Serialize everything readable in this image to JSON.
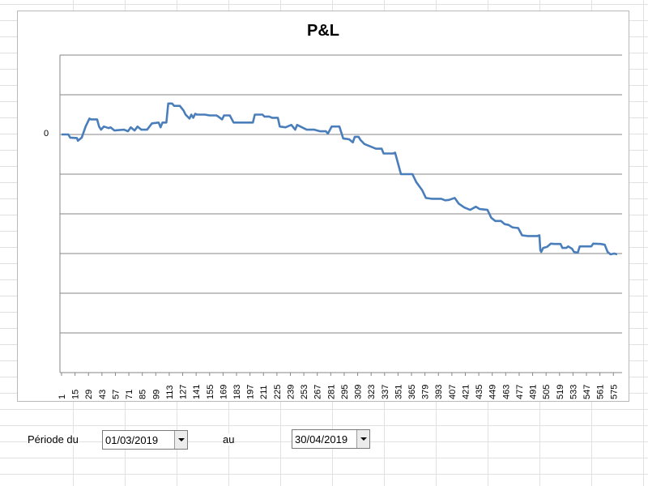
{
  "chart_data": {
    "type": "line",
    "title": "P&L",
    "ylabel_ticks": [
      "0"
    ],
    "y_gridlines": 8,
    "grid": true,
    "legend": "none",
    "line_color": "#4a7ebb",
    "x_tick_labels": [
      "1",
      "15",
      "29",
      "43",
      "57",
      "71",
      "85",
      "99",
      "113",
      "127",
      "141",
      "155",
      "169",
      "183",
      "197",
      "211",
      "225",
      "239",
      "253",
      "267",
      "281",
      "295",
      "309",
      "323",
      "337",
      "351",
      "365",
      "379",
      "393",
      "407",
      "421",
      "435",
      "449",
      "463",
      "477",
      "491",
      "505",
      "519",
      "533",
      "547",
      "561",
      "575"
    ],
    "x_range": [
      1,
      579
    ],
    "y_range": [
      -2.95,
      1.95
    ],
    "note_units": "grid steps (0 = zero line)",
    "series": [
      {
        "points": [
          [
            1,
            0
          ],
          [
            8,
            0
          ],
          [
            10,
            -0.08
          ],
          [
            17,
            -0.09
          ],
          [
            18,
            -0.16
          ],
          [
            22,
            -0.08
          ],
          [
            26,
            0.2
          ],
          [
            30,
            0.4
          ],
          [
            32,
            0.38
          ],
          [
            38,
            0.38
          ],
          [
            40,
            0.2
          ],
          [
            42,
            0.12
          ],
          [
            45,
            0.2
          ],
          [
            50,
            0.16
          ],
          [
            52,
            0.18
          ],
          [
            56,
            0.1
          ],
          [
            66,
            0.12
          ],
          [
            70,
            0.08
          ],
          [
            73,
            0.18
          ],
          [
            77,
            0.1
          ],
          [
            80,
            0.2
          ],
          [
            84,
            0.12
          ],
          [
            90,
            0.12
          ],
          [
            95,
            0.28
          ],
          [
            102,
            0.3
          ],
          [
            104,
            0.18
          ],
          [
            106,
            0.3
          ],
          [
            110,
            0.3
          ],
          [
            112,
            0.78
          ],
          [
            116,
            0.78
          ],
          [
            118,
            0.72
          ],
          [
            124,
            0.72
          ],
          [
            128,
            0.6
          ],
          [
            130,
            0.5
          ],
          [
            134,
            0.4
          ],
          [
            136,
            0.5
          ],
          [
            138,
            0.42
          ],
          [
            140,
            0.52
          ],
          [
            142,
            0.5
          ],
          [
            150,
            0.5
          ],
          [
            155,
            0.48
          ],
          [
            158,
            0.48
          ],
          [
            162,
            0.48
          ],
          [
            164,
            0.45
          ],
          [
            168,
            0.38
          ],
          [
            170,
            0.48
          ],
          [
            176,
            0.48
          ],
          [
            180,
            0.3
          ],
          [
            186,
            0.3
          ],
          [
            200,
            0.3
          ],
          [
            202,
            0.5
          ],
          [
            210,
            0.5
          ],
          [
            212,
            0.45
          ],
          [
            217,
            0.45
          ],
          [
            220,
            0.42
          ],
          [
            226,
            0.42
          ],
          [
            228,
            0.2
          ],
          [
            234,
            0.18
          ],
          [
            240,
            0.24
          ],
          [
            244,
            0.12
          ],
          [
            246,
            0.24
          ],
          [
            256,
            0.12
          ],
          [
            264,
            0.12
          ],
          [
            270,
            0.08
          ],
          [
            276,
            0.08
          ],
          [
            278,
            0.02
          ],
          [
            282,
            0.2
          ],
          [
            290,
            0.2
          ],
          [
            294,
            -0.1
          ],
          [
            300,
            -0.12
          ],
          [
            304,
            -0.2
          ],
          [
            306,
            -0.06
          ],
          [
            310,
            -0.06
          ],
          [
            312,
            -0.14
          ],
          [
            316,
            -0.24
          ],
          [
            322,
            -0.3
          ],
          [
            328,
            -0.36
          ],
          [
            334,
            -0.36
          ],
          [
            336,
            -0.48
          ],
          [
            340,
            -0.48
          ],
          [
            346,
            -0.48
          ],
          [
            348,
            -0.46
          ],
          [
            354,
            -1.0
          ],
          [
            362,
            -1.0
          ],
          [
            366,
            -1.0
          ],
          [
            370,
            -1.2
          ],
          [
            376,
            -1.4
          ],
          [
            380,
            -1.6
          ],
          [
            386,
            -1.62
          ],
          [
            390,
            -1.62
          ],
          [
            396,
            -1.62
          ],
          [
            400,
            -1.66
          ],
          [
            404,
            -1.65
          ],
          [
            410,
            -1.6
          ],
          [
            414,
            -1.74
          ],
          [
            420,
            -1.84
          ],
          [
            426,
            -1.9
          ],
          [
            432,
            -1.82
          ],
          [
            436,
            -1.88
          ],
          [
            444,
            -1.9
          ],
          [
            448,
            -2.1
          ],
          [
            452,
            -2.18
          ],
          [
            458,
            -2.18
          ],
          [
            462,
            -2.26
          ],
          [
            466,
            -2.28
          ],
          [
            470,
            -2.34
          ],
          [
            476,
            -2.36
          ],
          [
            480,
            -2.54
          ],
          [
            486,
            -2.56
          ],
          [
            490,
            -2.56
          ],
          [
            496,
            -2.56
          ],
          [
            498,
            -2.54
          ],
          [
            499,
            -2.92
          ],
          [
            500,
            -2.96
          ],
          [
            502,
            -2.86
          ],
          [
            506,
            -2.83
          ],
          [
            510,
            -2.75
          ],
          [
            514,
            -2.76
          ],
          [
            520,
            -2.76
          ],
          [
            522,
            -2.86
          ],
          [
            526,
            -2.86
          ],
          [
            528,
            -2.82
          ],
          [
            532,
            -2.88
          ],
          [
            534,
            -2.96
          ],
          [
            538,
            -2.98
          ],
          [
            540,
            -2.82
          ],
          [
            546,
            -2.82
          ],
          [
            552,
            -2.82
          ],
          [
            554,
            -2.75
          ],
          [
            562,
            -2.76
          ],
          [
            566,
            -2.78
          ],
          [
            569,
            -2.96
          ],
          [
            572,
            -3.02
          ],
          [
            576,
            -3.0
          ],
          [
            579,
            -3.02
          ]
        ]
      }
    ]
  },
  "controls": {
    "period_label": "Période du",
    "from_date": "01/03/2019",
    "to_label": "au",
    "to_date": "30/04/2019"
  }
}
